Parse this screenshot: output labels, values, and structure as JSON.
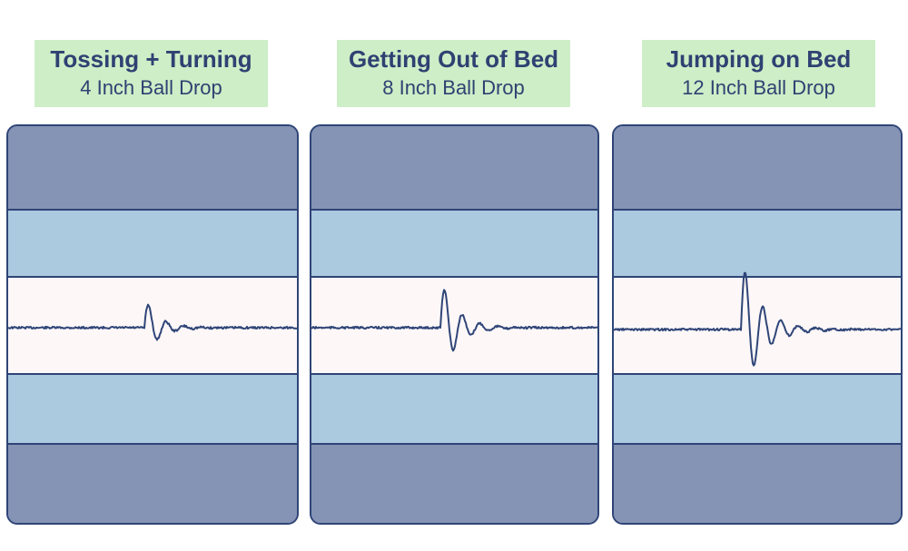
{
  "panels": [
    {
      "title": "Tossing + Turning",
      "subtitle": "4 Inch Ball Drop",
      "wave": {
        "amplitude": 1.0
      }
    },
    {
      "title": "Getting Out of Bed",
      "subtitle": "8 Inch Ball Drop",
      "wave": {
        "amplitude": 1.6
      }
    },
    {
      "title": "Jumping on Bed",
      "subtitle": "12 Inch Ball Drop",
      "wave": {
        "amplitude": 2.3
      }
    }
  ],
  "colors": {
    "label_bg": "#cdeec7",
    "text": "#2e4272",
    "outer_band": "#8593b5",
    "mid_band": "#abc9df",
    "center_band": "#fdf7f8",
    "line": "#2f4577"
  }
}
